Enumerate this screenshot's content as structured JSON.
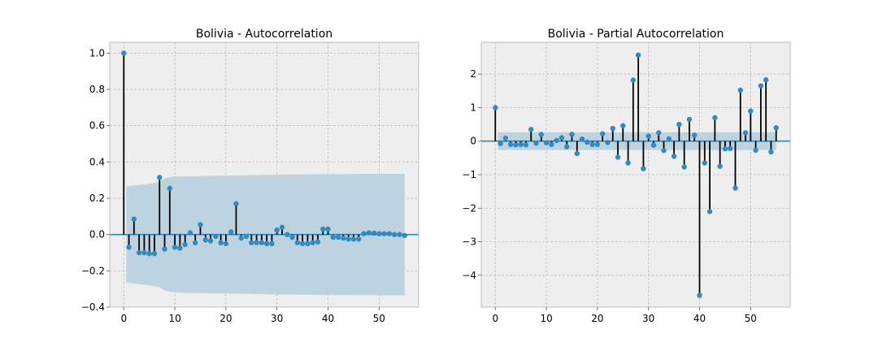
{
  "chart_data": [
    {
      "type": "stem",
      "title": "Bolivia - Autocorrelation",
      "xlabel": "",
      "ylabel": "",
      "xlim": [
        -2.75,
        57.75
      ],
      "ylim": [
        -0.4,
        1.06
      ],
      "xticks": [
        "0",
        "10",
        "20",
        "30",
        "40",
        "50"
      ],
      "yticks": [
        "−0.4",
        "−0.2",
        "0.0",
        "0.2",
        "0.4",
        "0.6",
        "0.8",
        "1.0"
      ],
      "grid": true,
      "confidence_band": {
        "lags": [
          0.5,
          5,
          7,
          8,
          9,
          10,
          20,
          30,
          40,
          55
        ],
        "upper": [
          0.265,
          0.28,
          0.29,
          0.31,
          0.315,
          0.32,
          0.325,
          0.33,
          0.333,
          0.335
        ]
      },
      "lags": [
        0,
        1,
        2,
        3,
        4,
        5,
        6,
        7,
        8,
        9,
        10,
        11,
        12,
        13,
        14,
        15,
        16,
        17,
        18,
        19,
        20,
        21,
        22,
        23,
        24,
        25,
        26,
        27,
        28,
        29,
        30,
        31,
        32,
        33,
        34,
        35,
        36,
        37,
        38,
        39,
        40,
        41,
        42,
        43,
        44,
        45,
        46,
        47,
        48,
        49,
        50,
        51,
        52,
        53,
        54,
        55
      ],
      "values": [
        1.0,
        -0.07,
        0.085,
        -0.1,
        -0.1,
        -0.105,
        -0.105,
        0.315,
        -0.08,
        0.255,
        -0.07,
        -0.075,
        -0.055,
        0.01,
        -0.045,
        0.055,
        -0.03,
        -0.035,
        -0.01,
        -0.045,
        -0.05,
        0.015,
        0.17,
        -0.02,
        -0.01,
        -0.045,
        -0.045,
        -0.045,
        -0.05,
        -0.05,
        0.025,
        0.04,
        0.0,
        -0.015,
        -0.045,
        -0.05,
        -0.05,
        -0.045,
        -0.04,
        0.03,
        0.03,
        -0.015,
        -0.015,
        -0.02,
        -0.025,
        -0.025,
        -0.025,
        0.005,
        0.01,
        0.008,
        0.005,
        0.005,
        0.005,
        0.0,
        0.0,
        -0.005
      ]
    },
    {
      "type": "stem",
      "title": "Bolivia - Partial Autocorrelation",
      "xlabel": "",
      "ylabel": "",
      "xlim": [
        -2.75,
        57.75
      ],
      "ylim": [
        -4.95,
        2.95
      ],
      "xticks": [
        "0",
        "10",
        "20",
        "30",
        "40",
        "50"
      ],
      "yticks": [
        "−4",
        "−3",
        "−2",
        "−1",
        "0",
        "1",
        "2"
      ],
      "grid": true,
      "confidence_band": {
        "lags": [
          0.5,
          55
        ],
        "upper": [
          0.265,
          0.265
        ]
      },
      "lags": [
        0,
        1,
        2,
        3,
        4,
        5,
        6,
        7,
        8,
        9,
        10,
        11,
        12,
        13,
        14,
        15,
        16,
        17,
        18,
        19,
        20,
        21,
        22,
        23,
        24,
        25,
        26,
        27,
        28,
        29,
        30,
        31,
        32,
        33,
        34,
        35,
        36,
        37,
        38,
        39,
        40,
        41,
        42,
        43,
        44,
        45,
        46,
        47,
        48,
        49,
        50,
        51,
        52,
        53,
        54,
        55
      ],
      "values": [
        1.0,
        -0.07,
        0.09,
        -0.1,
        -0.11,
        -0.1,
        -0.11,
        0.35,
        -0.06,
        0.2,
        -0.05,
        -0.1,
        0.02,
        0.1,
        -0.17,
        0.2,
        -0.37,
        0.06,
        -0.03,
        -0.1,
        -0.1,
        0.22,
        -0.04,
        0.38,
        -0.48,
        0.46,
        -0.65,
        1.82,
        2.57,
        -0.82,
        0.15,
        -0.12,
        0.25,
        -0.28,
        0.07,
        -0.45,
        0.5,
        -0.77,
        0.65,
        0.18,
        -4.6,
        -0.65,
        -2.1,
        0.7,
        -0.75,
        -0.23,
        -0.22,
        -1.4,
        1.52,
        0.25,
        0.9,
        -0.27,
        1.65,
        1.83,
        -0.32,
        0.4
      ]
    }
  ]
}
